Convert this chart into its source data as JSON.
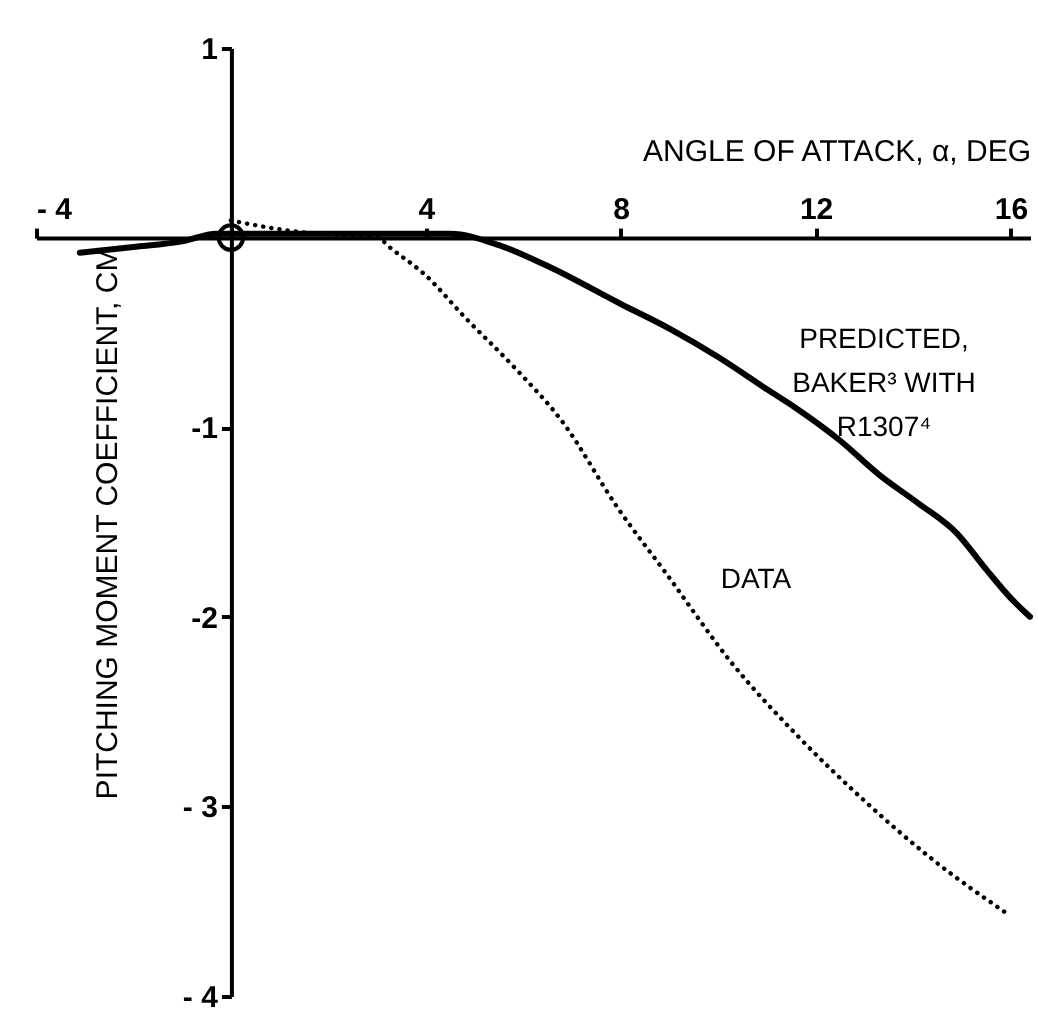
{
  "chart_data": {
    "type": "line",
    "xlabel": "ANGLE OF ATTACK, α, DEG",
    "ylabel": "PITCHING MOMENT COEFFICIENT, CM",
    "xlim": [
      -4,
      16.4
    ],
    "ylim": [
      -4,
      1
    ],
    "xticks": [
      {
        "value": -4,
        "label": "- 4"
      },
      4,
      8,
      12,
      16
    ],
    "yticks": [
      {
        "value": -4,
        "label": "- 4"
      },
      {
        "value": -3,
        "label": "- 3"
      },
      -2,
      -1,
      1
    ],
    "grid": false,
    "series": [
      {
        "line_style": "solid",
        "color": "#000000",
        "x": [
          -3.1,
          -2,
          -1,
          -0.3,
          0.5,
          2,
          3.5,
          4.5,
          5.5,
          6.5,
          8,
          9,
          10,
          11,
          11.6,
          12.5,
          13.3,
          14.1,
          14.9,
          15.5,
          16,
          16.4
        ],
        "values": [
          -0.08,
          -0.05,
          -0.02,
          0.02,
          0.02,
          0.02,
          0.02,
          0.02,
          -0.04,
          -0.15,
          -0.35,
          -0.48,
          -0.63,
          -0.8,
          -0.9,
          -1.07,
          -1.25,
          -1.4,
          -1.56,
          -1.75,
          -1.9,
          -2.0
        ]
      },
      {
        "line_style": "dotted",
        "color": "#000000",
        "x": [
          0,
          1.4,
          2.5,
          3,
          3.3,
          4,
          4.8,
          5.8,
          6.8,
          7.95,
          8.9,
          10.3,
          11.6,
          13.0,
          14.4,
          15.9
        ],
        "values": [
          0.09,
          0.03,
          0.01,
          0.0,
          -0.06,
          -0.2,
          -0.42,
          -0.68,
          -0.97,
          -1.43,
          -1.76,
          -2.25,
          -2.62,
          -2.97,
          -3.28,
          -3.56
        ]
      },
      {
        "type": "scatter",
        "marker": "circle",
        "color": "#000000",
        "x": [
          0
        ],
        "values": [
          0
        ]
      }
    ],
    "annotations": [
      "PREDICTED,\nBAKER³ WITH\nR1307⁴",
      "DATA"
    ]
  }
}
